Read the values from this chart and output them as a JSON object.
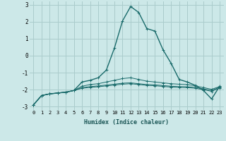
{
  "xlabel": "Humidex (Indice chaleur)",
  "background_color": "#cce8e8",
  "grid_color": "#aacccc",
  "line_color": "#1a6b6b",
  "x_values": [
    0,
    1,
    2,
    3,
    4,
    5,
    6,
    7,
    8,
    9,
    10,
    11,
    12,
    13,
    14,
    15,
    16,
    17,
    18,
    19,
    20,
    21,
    22,
    23
  ],
  "series": [
    [
      -2.9,
      -2.35,
      -2.25,
      -2.2,
      -2.15,
      -2.05,
      -1.55,
      -1.45,
      -1.3,
      -0.85,
      0.45,
      2.05,
      2.9,
      2.55,
      1.6,
      1.45,
      0.35,
      -0.45,
      -1.4,
      -1.55,
      -1.75,
      -2.05,
      -2.55,
      -1.8
    ],
    [
      -2.9,
      -2.35,
      -2.25,
      -2.2,
      -2.15,
      -2.05,
      -1.8,
      -1.7,
      -1.65,
      -1.55,
      -1.45,
      -1.35,
      -1.3,
      -1.4,
      -1.5,
      -1.55,
      -1.6,
      -1.65,
      -1.68,
      -1.7,
      -1.78,
      -1.88,
      -1.98,
      -1.82
    ],
    [
      -2.9,
      -2.35,
      -2.25,
      -2.2,
      -2.15,
      -2.05,
      -1.88,
      -1.82,
      -1.78,
      -1.73,
      -1.68,
      -1.62,
      -1.6,
      -1.65,
      -1.7,
      -1.72,
      -1.76,
      -1.8,
      -1.82,
      -1.83,
      -1.87,
      -1.95,
      -2.05,
      -1.85
    ],
    [
      -2.9,
      -2.35,
      -2.25,
      -2.2,
      -2.15,
      -2.05,
      -1.92,
      -1.87,
      -1.83,
      -1.78,
      -1.73,
      -1.68,
      -1.65,
      -1.7,
      -1.75,
      -1.77,
      -1.81,
      -1.85,
      -1.87,
      -1.88,
      -1.92,
      -2.0,
      -2.1,
      -1.9
    ]
  ],
  "ylim": [
    -3.2,
    3.2
  ],
  "yticks": [
    -3,
    -2,
    -1,
    0,
    1,
    2,
    3
  ],
  "xticks": [
    0,
    1,
    2,
    3,
    4,
    5,
    6,
    7,
    8,
    9,
    10,
    11,
    12,
    13,
    14,
    15,
    16,
    17,
    18,
    19,
    20,
    21,
    22,
    23
  ],
  "marker": "+"
}
